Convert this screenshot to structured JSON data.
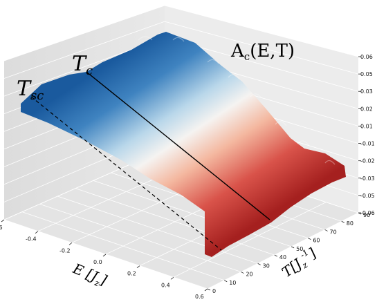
{
  "chart_data": {
    "type": "surface",
    "title": "A_c(E,T)",
    "title_parts": {
      "a": "A",
      "sub": "c",
      "rest": "(E,T)"
    },
    "xlabel_parts": {
      "var": "E",
      "unit": "J",
      "sub": "z"
    },
    "ylabel_parts": {
      "var": "T",
      "unit": "J",
      "sub": "z",
      "sup": "-1"
    },
    "x_ticks": [
      "-0.6",
      "-0.4",
      "-0.2",
      "0.0",
      "0.2",
      "0.4",
      "0.6"
    ],
    "y_ticks": [
      "0",
      "10",
      "20",
      "30",
      "40",
      "50",
      "60",
      "70",
      "80",
      "90"
    ],
    "z_ticks": [
      "-0.06",
      "-0.05",
      "-0.03",
      "-0.02",
      "-0.01",
      "0.01",
      "0.02",
      "0.03",
      "0.05",
      "0.06"
    ],
    "xlim": [
      -0.6,
      0.6
    ],
    "ylim": [
      0,
      90
    ],
    "zlim": [
      -0.06,
      0.06
    ],
    "colormap": "RdBu",
    "annotations": [
      {
        "label": "T_c",
        "text": "T",
        "sub": "c",
        "style": "solid",
        "T": 59
      },
      {
        "label": "T_sc",
        "text": "T",
        "sub": "sc",
        "style": "dashed",
        "T": 25
      }
    ],
    "colors": {
      "blue": "#1d5fa6",
      "white": "#f5f3f1",
      "red": "#b32a27",
      "pane": "#ececec",
      "grid": "#ffffff"
    }
  }
}
